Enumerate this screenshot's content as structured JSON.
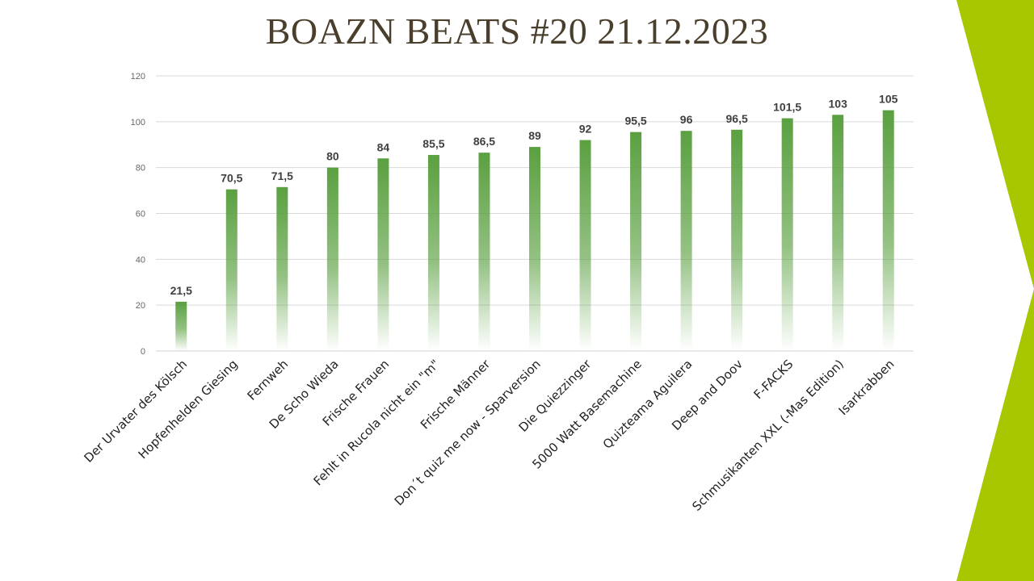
{
  "slide": {
    "title": "BOAZN BEATS #20 21.12.2023",
    "accent_color": "#a8c700"
  },
  "chart_data": {
    "type": "bar",
    "title": "",
    "xlabel": "",
    "ylabel": "",
    "ylim": [
      0,
      120
    ],
    "yticks": [
      0,
      20,
      40,
      60,
      80,
      100,
      120
    ],
    "grid": true,
    "bar_color": "#5aa040",
    "categories": [
      "Der Urvater des Kölsch",
      "Hopfenhelden Giesing",
      "Fernweh",
      "De Scho Wieda",
      "Frische Frauen",
      "Fehlt in Rucola nicht ein \"m\"",
      "Frische Männer",
      "Don´t quiz me now - Sparversion",
      "Die Quiezzinger",
      "5000 Watt Basemachine",
      "Quizteama Aguilera",
      "Deep and Doov",
      "F-FACKS",
      "Schmusikanten XXL (-Mas Edition)",
      "Isarkrabben"
    ],
    "values": [
      21.5,
      70.5,
      71.5,
      80,
      84,
      85.5,
      86.5,
      89,
      92,
      95.5,
      96,
      96.5,
      101.5,
      103,
      105
    ],
    "value_labels": [
      "21,5",
      "70,5",
      "71,5",
      "80",
      "84",
      "85,5",
      "86,5",
      "89",
      "92",
      "95,5",
      "96",
      "96,5",
      "101,5",
      "103",
      "105"
    ]
  }
}
